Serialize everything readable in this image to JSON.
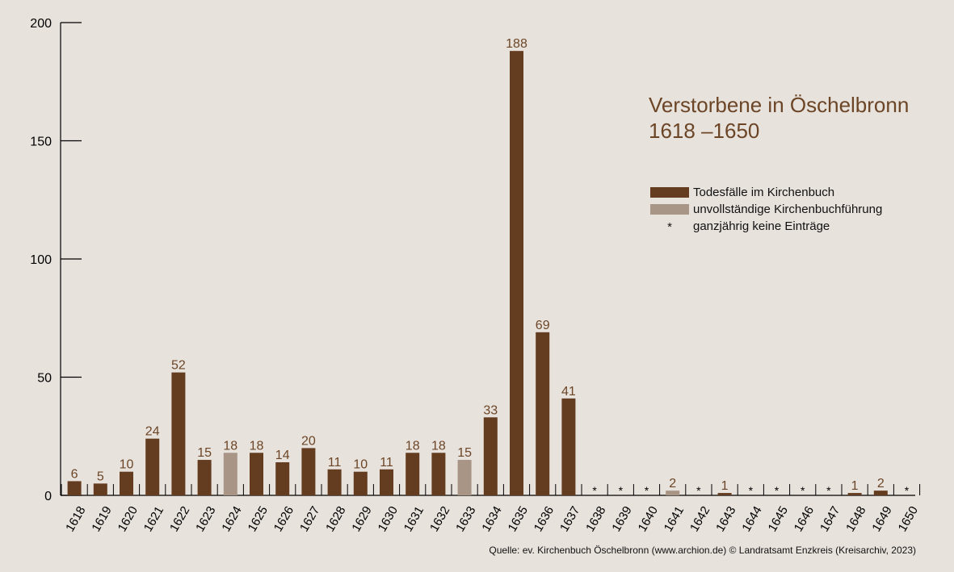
{
  "chart_data": {
    "type": "bar",
    "title": "Verstorbene in Öschelbronn",
    "subtitle": "1618 –1650",
    "ylim": [
      0,
      200
    ],
    "yticks": [
      0,
      50,
      100,
      150,
      200
    ],
    "categories": [
      "1618",
      "1619",
      "1620",
      "1621",
      "1622",
      "1623",
      "1624",
      "1625",
      "1626",
      "1627",
      "1628",
      "1629",
      "1630",
      "1631",
      "1632",
      "1633",
      "1634",
      "1635",
      "1636",
      "1637",
      "1638",
      "1639",
      "1640",
      "1641",
      "1642",
      "1643",
      "1644",
      "1645",
      "1646",
      "1647",
      "1648",
      "1649",
      "1650"
    ],
    "values": [
      6,
      5,
      10,
      24,
      52,
      15,
      18,
      18,
      14,
      20,
      11,
      10,
      11,
      18,
      18,
      15,
      33,
      188,
      69,
      41,
      null,
      null,
      null,
      2,
      null,
      1,
      null,
      null,
      null,
      null,
      1,
      2,
      null
    ],
    "status": [
      "complete",
      "complete",
      "complete",
      "complete",
      "complete",
      "complete",
      "incomplete",
      "complete",
      "complete",
      "complete",
      "complete",
      "complete",
      "complete",
      "complete",
      "complete",
      "incomplete",
      "complete",
      "complete",
      "complete",
      "complete",
      "none",
      "none",
      "none",
      "incomplete",
      "none",
      "complete",
      "none",
      "none",
      "none",
      "none",
      "complete",
      "complete",
      "none"
    ],
    "legend": [
      {
        "key": "complete",
        "label": "Todesfälle im Kirchenbuch",
        "color": "#643c1f"
      },
      {
        "key": "incomplete",
        "label": "unvollständige Kirchenbuchführung",
        "color": "#a89585"
      },
      {
        "key": "none",
        "label": "ganzjährig keine Einträge",
        "marker": "*"
      }
    ],
    "no_entry_marker": "*",
    "grid": false,
    "legend_position": "right"
  },
  "colors": {
    "background": "#e8e2dd",
    "bar_complete": "#643c1f",
    "bar_incomplete": "#a89585",
    "label_text": "#6b4526",
    "axis": "#000000"
  },
  "source": "Quelle: ev. Kirchenbuch Öschelbronn (www.archion.de)  © Landratsamt Enzkreis (Kreisarchiv, 2023)"
}
